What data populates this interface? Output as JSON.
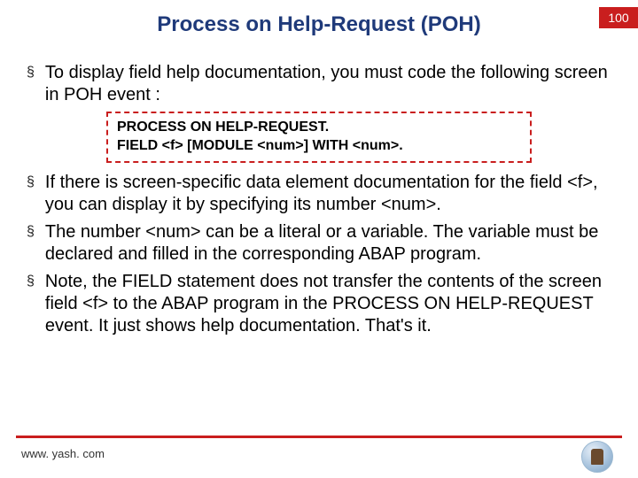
{
  "header": {
    "title": "Process on Help-Request (POH)",
    "page_number": "100",
    "title_color": "#1f3a7a",
    "badge_bg": "#c91e1e",
    "badge_fg": "#ffffff"
  },
  "bullets": [
    "To display field help documentation, you must code the following screen in POH event :",
    "If there is screen-specific data element documentation for the field <f>, you can display it by specifying its number <num>.",
    "The number <num> can be a literal or a variable. The variable must be declared and filled in the corresponding ABAP program.",
    "Note, the FIELD statement does not transfer the contents of the screen field <f> to the ABAP program in the PROCESS ON HELP-REQUEST event. It just shows help documentation. That's it."
  ],
  "code": {
    "lines": [
      "PROCESS ON HELP-REQUEST.",
      "FIELD <f> [MODULE  <num>] WITH <num>."
    ],
    "border_color": "#c91e1e"
  },
  "footer": {
    "url": "www. yash. com",
    "line_color": "#c91e1e"
  },
  "style": {
    "bullet_marker": "§",
    "body_font_size": 20,
    "title_font_size": 24,
    "code_font_size": 16,
    "background_color": "#ffffff"
  }
}
